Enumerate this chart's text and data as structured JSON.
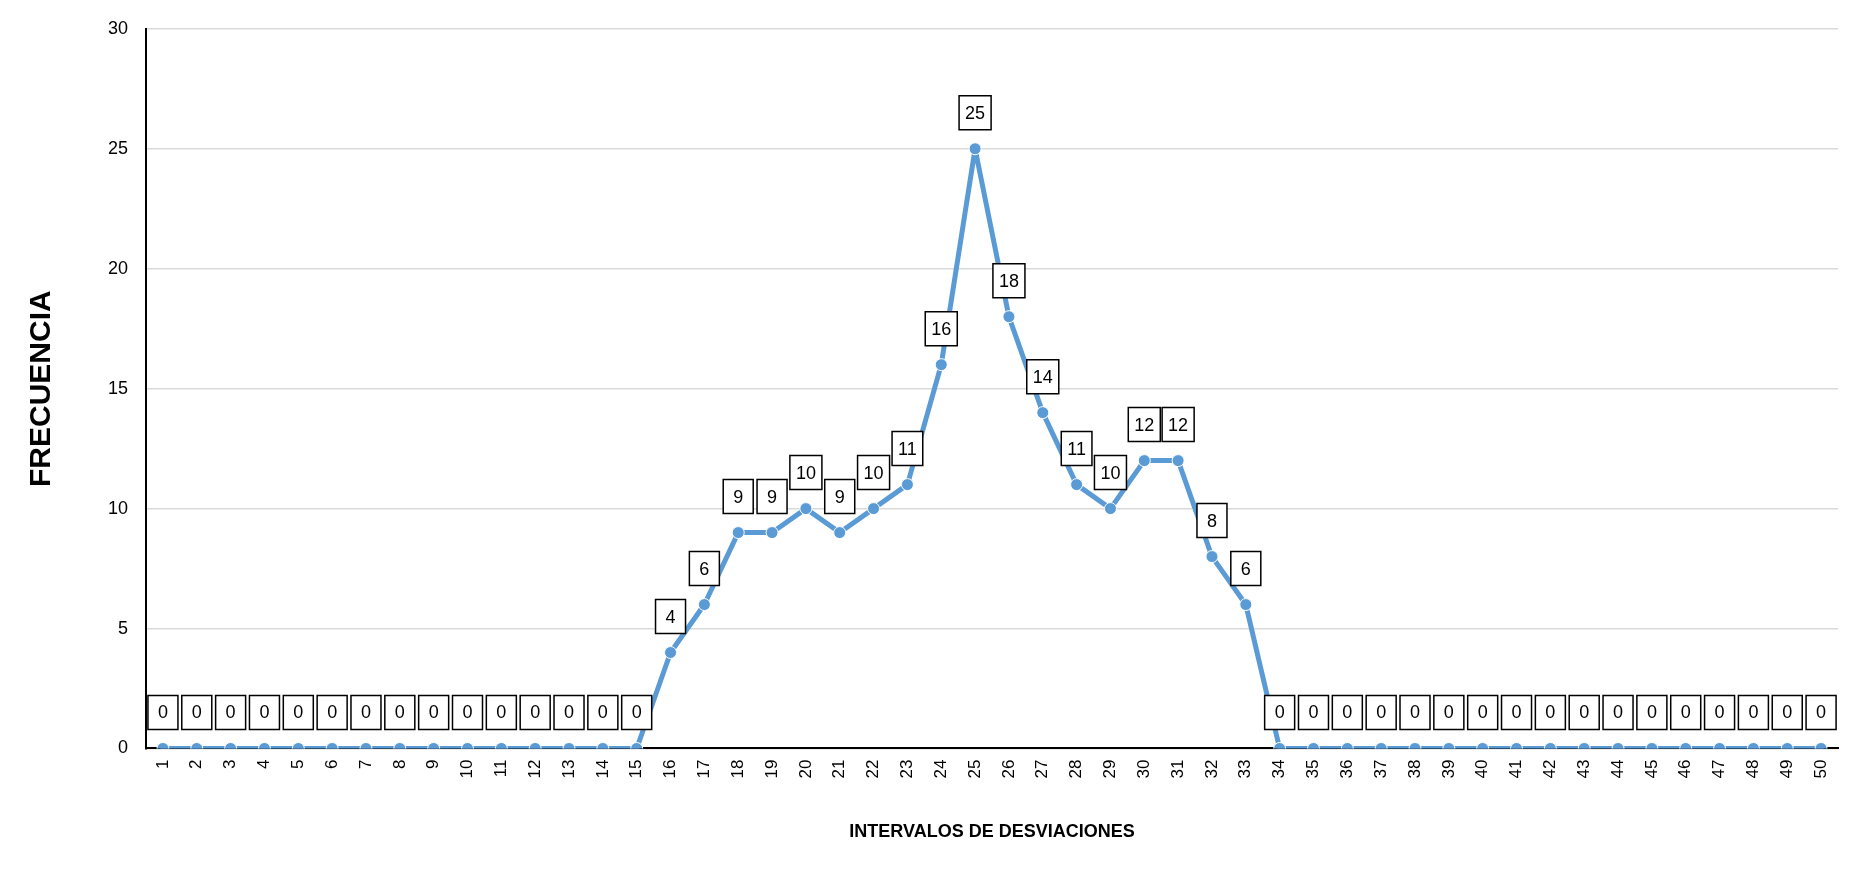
{
  "chart_data": {
    "type": "line",
    "xlabel": "INTERVALOS DE DESVIACIONES",
    "ylabel": "FRECUENCIA",
    "categories": [
      "1",
      "2",
      "3",
      "4",
      "5",
      "6",
      "7",
      "8",
      "9",
      "10",
      "11",
      "12",
      "13",
      "14",
      "15",
      "16",
      "17",
      "18",
      "19",
      "20",
      "21",
      "22",
      "23",
      "24",
      "25",
      "26",
      "27",
      "28",
      "29",
      "30",
      "31",
      "32",
      "33",
      "34",
      "35",
      "36",
      "37",
      "38",
      "39",
      "40",
      "41",
      "42",
      "43",
      "44",
      "45",
      "46",
      "47",
      "48",
      "49",
      "50"
    ],
    "series": [
      {
        "color": "#5b9bd5",
        "values": [
          0,
          0,
          0,
          0,
          0,
          0,
          0,
          0,
          0,
          0,
          0,
          0,
          0,
          0,
          0,
          4,
          6,
          9,
          9,
          10,
          9,
          10,
          11,
          16,
          25,
          18,
          14,
          11,
          10,
          12,
          12,
          8,
          6,
          0,
          0,
          0,
          0,
          0,
          0,
          0,
          0,
          0,
          0,
          0,
          0,
          0,
          0,
          0,
          0,
          0
        ]
      }
    ],
    "ylim": [
      0,
      30
    ],
    "yticks": [
      0,
      5,
      10,
      15,
      20,
      25,
      30
    ],
    "grid": "y",
    "legend": false,
    "marker": "circle",
    "line_style": "solid",
    "data_labels": true
  }
}
